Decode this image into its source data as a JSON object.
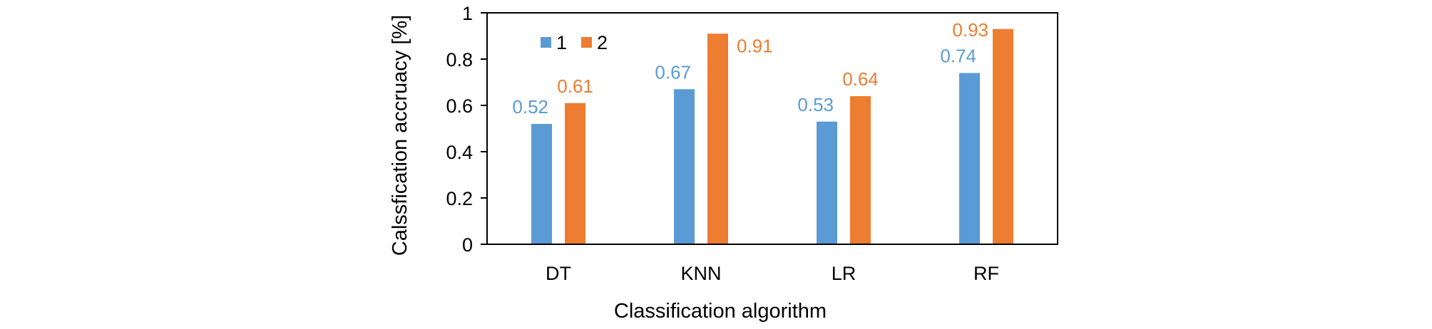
{
  "chart_data": {
    "type": "bar",
    "categories": [
      "DT",
      "KNN",
      "LR",
      "RF"
    ],
    "series": [
      {
        "name": "1",
        "values": [
          0.52,
          0.67,
          0.53,
          0.74
        ],
        "color": "#5B9BD5"
      },
      {
        "name": "2",
        "values": [
          0.61,
          0.91,
          0.64,
          0.93
        ],
        "color": "#ED7D31"
      }
    ],
    "data_labels": [
      [
        "0.52",
        "0.67",
        "0.53",
        "0.74"
      ],
      [
        "0.61",
        "0.91",
        "0.64",
        "0.93"
      ]
    ],
    "xlabel": "Classification algorithm",
    "ylabel": "Calssfication accruacy [%]",
    "ylim": [
      0,
      1
    ],
    "yticks": [
      "0",
      "0.2",
      "0.4",
      "0.6",
      "0.8",
      "1"
    ],
    "ytick_values": [
      0,
      0.2,
      0.4,
      0.6,
      0.8,
      1
    ],
    "grid": false,
    "legend_position": "top-left"
  }
}
